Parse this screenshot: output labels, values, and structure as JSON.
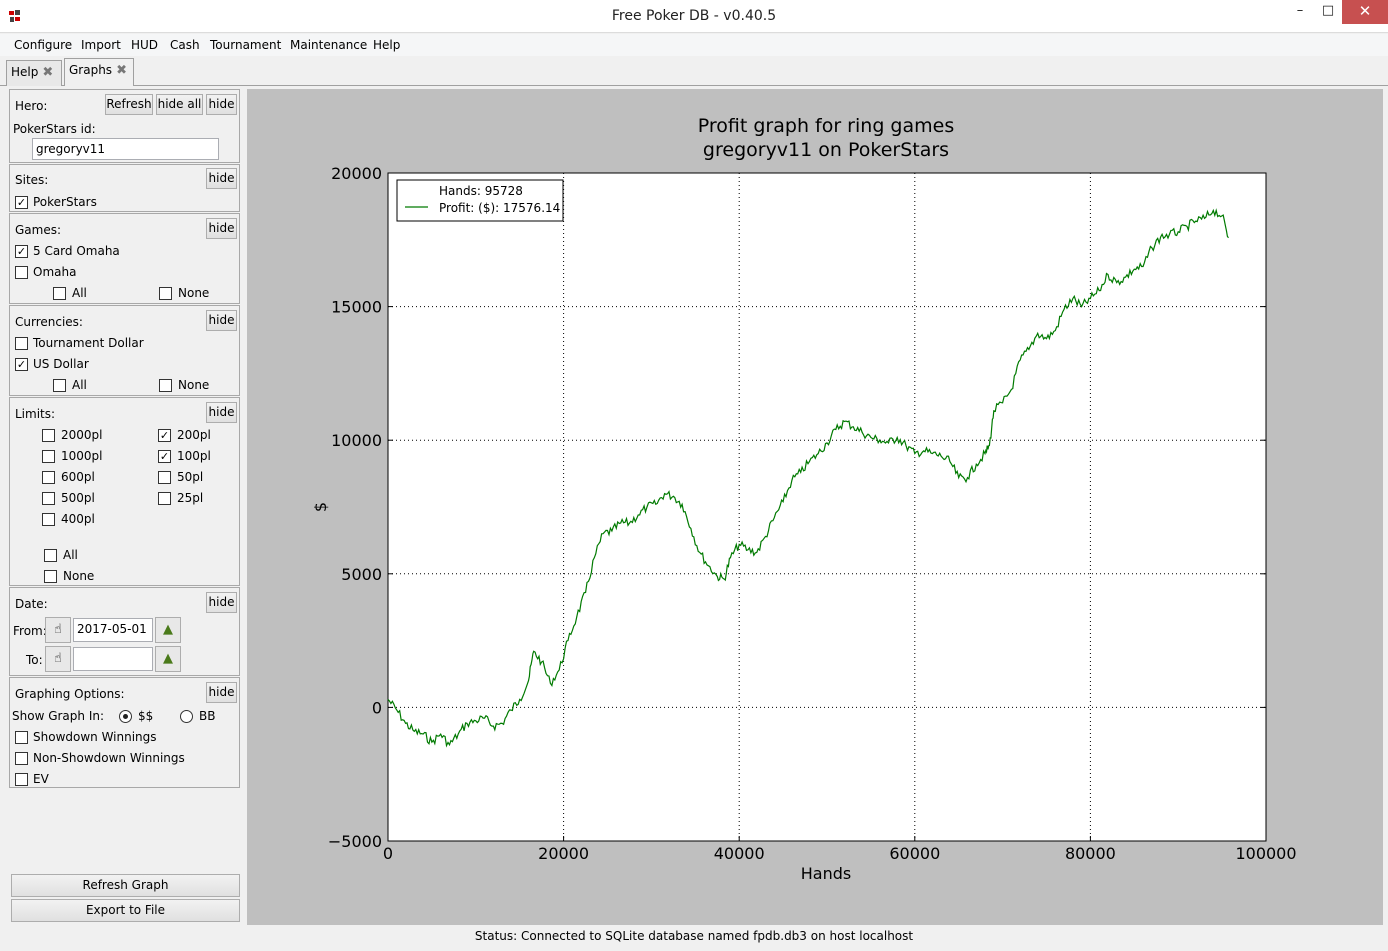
{
  "window": {
    "title": "Free Poker DB - v0.40.5",
    "min": "–",
    "max": "□",
    "close": "✕"
  },
  "menu": [
    "Configure",
    "Import",
    "HUD",
    "Cash",
    "Tournament",
    "Maintenance",
    "Help"
  ],
  "tabs": [
    {
      "label": "Help",
      "close": "✖"
    },
    {
      "label": "Graphs",
      "close": "✖"
    }
  ],
  "sidebar": {
    "hero": {
      "label": "Hero:",
      "refresh": "Refresh",
      "hide_all": "hide all",
      "hide": "hide",
      "site_id_label": "PokerStars id:",
      "player": "gregoryv11"
    },
    "sites": {
      "label": "Sites:",
      "hide": "hide",
      "items": [
        {
          "label": "PokerStars",
          "checked": true
        }
      ]
    },
    "games": {
      "label": "Games:",
      "hide": "hide",
      "items": [
        {
          "label": "5 Card Omaha",
          "checked": true
        },
        {
          "label": "Omaha",
          "checked": false
        }
      ],
      "all": "All",
      "none": "None"
    },
    "currencies": {
      "label": "Currencies:",
      "hide": "hide",
      "items": [
        {
          "label": "Tournament Dollar",
          "checked": false
        },
        {
          "label": "US Dollar",
          "checked": true
        }
      ],
      "all": "All",
      "none": "None"
    },
    "limits": {
      "label": "Limits:",
      "hide": "hide",
      "left": [
        {
          "label": "2000pl",
          "checked": false
        },
        {
          "label": "1000pl",
          "checked": false
        },
        {
          "label": "600pl",
          "checked": false
        },
        {
          "label": "500pl",
          "checked": false
        },
        {
          "label": "400pl",
          "checked": false
        }
      ],
      "right": [
        {
          "label": "200pl",
          "checked": true
        },
        {
          "label": "100pl",
          "checked": true
        },
        {
          "label": "50pl",
          "checked": false
        },
        {
          "label": "25pl",
          "checked": false
        }
      ],
      "all": "All",
      "none": "None"
    },
    "date": {
      "label": "Date:",
      "hide": "hide",
      "from_label": "From:",
      "from_value": "2017-05-01",
      "to_label": "To:",
      "to_value": ""
    },
    "graphing": {
      "label": "Graphing Options:",
      "hide": "hide",
      "show_in_label": "Show Graph In:",
      "dollars": "$$",
      "bb": "BB",
      "selected": "$$",
      "options": [
        {
          "label": "Showdown Winnings",
          "checked": false
        },
        {
          "label": "Non-Showdown Winnings",
          "checked": false
        },
        {
          "label": "EV",
          "checked": false
        }
      ]
    },
    "refresh_graph": "Refresh Graph",
    "export": "Export to File"
  },
  "chart_data": {
    "type": "line",
    "title": "Profit graph for ring games",
    "subtitle": "gregoryv11 on PokerStars",
    "xlabel": "Hands",
    "ylabel": "$",
    "xlim": [
      0,
      100000
    ],
    "ylim": [
      -5000,
      20000
    ],
    "xticks": [
      "0",
      "20000",
      "40000",
      "60000",
      "80000",
      "100000"
    ],
    "yticks": [
      "20000",
      "15000",
      "10000",
      "5000",
      "0",
      "−5000"
    ],
    "grid": true,
    "legend_position": "top-left",
    "legend": {
      "hands": "Hands: 95728",
      "profit": "Profit: ($): 17576.14"
    },
    "series": [
      {
        "color": "#007a00",
        "x": [
          0,
          1000,
          2000,
          3000,
          4000,
          5000,
          6000,
          7000,
          8000,
          9000,
          10000,
          11000,
          12000,
          13000,
          14000,
          15000,
          16000,
          16600,
          17500,
          18500,
          19500,
          20500,
          21500,
          22500,
          23500,
          24500,
          25500,
          26500,
          27500,
          28500,
          29500,
          30500,
          31500,
          32500,
          33500,
          34500,
          35500,
          36500,
          37500,
          38300,
          39000,
          40000,
          41000,
          42000,
          43000,
          44000,
          45000,
          46000,
          47000,
          48000,
          49000,
          50000,
          51000,
          52000,
          53000,
          54000,
          55000,
          56000,
          57000,
          58000,
          59000,
          60000,
          61000,
          62000,
          63000,
          64000,
          65000,
          66000,
          67000,
          68000,
          68500,
          69000,
          70000,
          71000,
          72000,
          73000,
          74000,
          75000,
          76000,
          77000,
          78000,
          79000,
          80000,
          81000,
          82000,
          83000,
          84000,
          85000,
          86000,
          87000,
          88000,
          89000,
          90000,
          91000,
          92000,
          93000,
          94000,
          95000,
          95728
        ],
        "y": [
          300,
          -100,
          -600,
          -900,
          -1000,
          -1300,
          -1000,
          -1400,
          -1000,
          -600,
          -500,
          -400,
          -700,
          -600,
          -100,
          300,
          1000,
          2100,
          1700,
          900,
          1400,
          2500,
          3400,
          4300,
          5600,
          6500,
          6600,
          6900,
          6900,
          7200,
          7500,
          7600,
          8000,
          7900,
          7600,
          6700,
          5800,
          5300,
          4900,
          4800,
          5600,
          6100,
          5900,
          5800,
          6400,
          7100,
          7700,
          8500,
          8800,
          9200,
          9500,
          9900,
          10400,
          10700,
          10500,
          10300,
          10100,
          10000,
          9900,
          10100,
          9800,
          9500,
          9600,
          9500,
          9400,
          9200,
          8600,
          8600,
          9100,
          9500,
          9800,
          11100,
          11400,
          11900,
          13000,
          13400,
          14000,
          13800,
          14100,
          14900,
          15300,
          15000,
          15300,
          15600,
          16200,
          15900,
          16100,
          16400,
          16500,
          17200,
          17600,
          17700,
          17800,
          18000,
          18200,
          18300,
          18600,
          18400,
          17576
        ]
      }
    ]
  }
}
